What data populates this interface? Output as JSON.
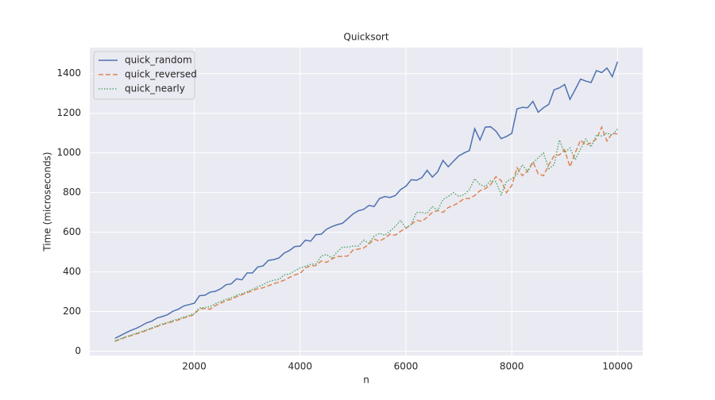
{
  "chart_data": {
    "type": "line",
    "title": "Quicksort",
    "x_label": "n",
    "y_label": "Time (microseconds)",
    "x": [
      500,
      600,
      700,
      800,
      900,
      1000,
      1100,
      1200,
      1300,
      1400,
      1500,
      1600,
      1700,
      1800,
      1900,
      2000,
      2100,
      2200,
      2300,
      2400,
      2500,
      2600,
      2700,
      2800,
      2900,
      3000,
      3100,
      3200,
      3300,
      3400,
      3500,
      3600,
      3700,
      3800,
      3900,
      4000,
      4100,
      4200,
      4300,
      4400,
      4500,
      4600,
      4700,
      4800,
      4900,
      5000,
      5100,
      5200,
      5300,
      5400,
      5500,
      5600,
      5700,
      5800,
      5900,
      6000,
      6100,
      6200,
      6300,
      6400,
      6500,
      6600,
      6700,
      6800,
      6900,
      7000,
      7100,
      7200,
      7300,
      7400,
      7500,
      7600,
      7700,
      7800,
      7900,
      8000,
      8100,
      8200,
      8300,
      8400,
      8500,
      8600,
      8700,
      8800,
      8900,
      9000,
      9100,
      9200,
      9300,
      9400,
      9500,
      9600,
      9700,
      9800,
      9900,
      10000
    ],
    "series": [
      {
        "name": "quick_random",
        "color": "#4c72b0",
        "dash": "none",
        "values": [
          65,
          78,
          92,
          105,
          115,
          128,
          143,
          152,
          168,
          175,
          185,
          202,
          212,
          228,
          235,
          242,
          280,
          282,
          298,
          302,
          315,
          335,
          340,
          365,
          360,
          395,
          395,
          425,
          430,
          458,
          462,
          470,
          495,
          508,
          528,
          530,
          560,
          555,
          588,
          590,
          615,
          628,
          638,
          645,
          668,
          692,
          708,
          715,
          735,
          730,
          770,
          780,
          775,
          785,
          815,
          832,
          865,
          862,
          875,
          912,
          878,
          905,
          962,
          930,
          958,
          985,
          1000,
          1012,
          1122,
          1065,
          1130,
          1132,
          1110,
          1072,
          1083,
          1098,
          1222,
          1230,
          1228,
          1260,
          1205,
          1228,
          1245,
          1318,
          1328,
          1345,
          1270,
          1320,
          1372,
          1362,
          1355,
          1415,
          1405,
          1428,
          1385,
          1460
        ]
      },
      {
        "name": "quick_reversed",
        "color": "#dd8452",
        "dash": "6,3",
        "values": [
          50,
          60,
          70,
          78,
          87,
          95,
          105,
          115,
          125,
          135,
          142,
          150,
          158,
          168,
          175,
          185,
          215,
          215,
          212,
          230,
          242,
          255,
          262,
          275,
          285,
          295,
          305,
          315,
          320,
          330,
          340,
          348,
          358,
          372,
          385,
          392,
          420,
          430,
          432,
          455,
          448,
          465,
          478,
          478,
          480,
          510,
          515,
          520,
          540,
          565,
          555,
          570,
          590,
          585,
          605,
          620,
          640,
          660,
          655,
          675,
          700,
          710,
          700,
          725,
          735,
          750,
          770,
          770,
          785,
          810,
          820,
          840,
          880,
          860,
          800,
          835,
          925,
          885,
          910,
          955,
          895,
          885,
          940,
          985,
          990,
          1015,
          930,
          1000,
          1065,
          1040,
          1050,
          1070,
          1130,
          1060,
          1100,
          1095
        ]
      },
      {
        "name": "quick_nearly",
        "color": "#55a868",
        "dash": "1.5,2",
        "values": [
          52,
          62,
          72,
          80,
          90,
          98,
          108,
          118,
          128,
          138,
          145,
          155,
          162,
          172,
          180,
          190,
          218,
          220,
          225,
          240,
          250,
          262,
          270,
          282,
          290,
          300,
          312,
          325,
          335,
          350,
          358,
          362,
          385,
          390,
          405,
          420,
          428,
          438,
          440,
          480,
          488,
          470,
          500,
          525,
          525,
          530,
          530,
          560,
          545,
          580,
          595,
          585,
          605,
          630,
          660,
          620,
          640,
          700,
          700,
          695,
          730,
          710,
          765,
          780,
          800,
          780,
          790,
          815,
          870,
          840,
          830,
          860,
          855,
          790,
          855,
          870,
          890,
          940,
          905,
          950,
          975,
          1000,
          920,
          940,
          1065,
          1000,
          1025,
          965,
          1020,
          1070,
          1030,
          1090,
          1085,
          1100,
          1090,
          1120
        ]
      }
    ],
    "xlim": [
      25,
      10475
    ],
    "ylim": [
      -22,
      1531
    ],
    "xticks": [
      2000,
      4000,
      6000,
      8000,
      10000
    ],
    "yticks": [
      0,
      200,
      400,
      600,
      800,
      1000,
      1200,
      1400
    ],
    "grid": true,
    "legend": "upper left"
  }
}
